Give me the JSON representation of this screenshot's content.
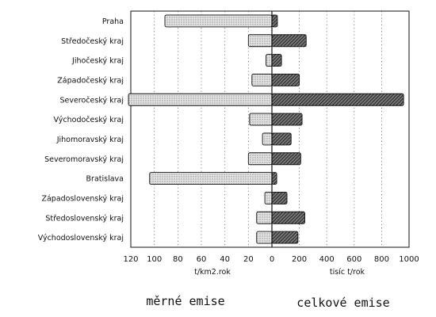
{
  "chart_data": {
    "type": "bar",
    "categories": [
      "Praha",
      "Středočeský kraj",
      "Jihočeský kraj",
      "Západočeský kraj",
      "Severočeský kraj",
      "Východočeský kraj",
      "Jihomoravský kraj",
      "Severomoravský kraj",
      "Bratislava",
      "Západoslovenský kraj",
      "Středoslovenský kraj",
      "Východoslovenský kraj"
    ],
    "series": [
      {
        "name": "měrné emise",
        "unit": "t/km2.rok",
        "direction": "left",
        "pattern": "dotted",
        "values": [
          91,
          20,
          5,
          17,
          122,
          19,
          8,
          20,
          104,
          6,
          13,
          13
        ]
      },
      {
        "name": "celkové emise",
        "unit": "tisíc t/rok",
        "direction": "right",
        "pattern": "hatched",
        "values": [
          40,
          250,
          70,
          200,
          960,
          220,
          140,
          210,
          35,
          110,
          240,
          190
        ]
      }
    ],
    "left_axis": {
      "label": "t/km2.rok",
      "ticks": [
        "120",
        "100",
        "80",
        "60",
        "40",
        "20",
        "0"
      ],
      "range": [
        0,
        120
      ]
    },
    "right_axis": {
      "label": "tisíc t/rok",
      "ticks": [
        "0",
        "200",
        "400",
        "600",
        "800",
        "1000"
      ],
      "range": [
        0,
        1000
      ]
    },
    "grid": "dotted vertical",
    "bottom_labels": {
      "left": "měrné emise",
      "right": "celkové emise"
    },
    "colors": {
      "ink": "#111111",
      "dotted_fill": "#d9d9d9",
      "hatch_fill": "#555555"
    }
  }
}
